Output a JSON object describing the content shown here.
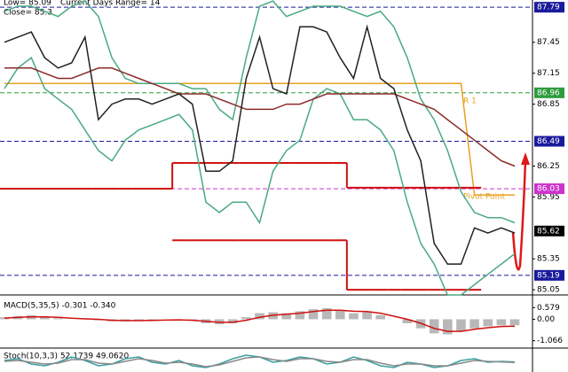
{
  "chart_data": [
    {
      "type": "line",
      "info": [
        "Low= 85.09",
        "Current Days Range= 14",
        "Close= 85.3"
      ],
      "ylim": [
        85.0,
        87.86
      ],
      "yticks": [
        87.45,
        87.15,
        86.85,
        86.25,
        85.95,
        85.35,
        85.05
      ],
      "levels": [
        {
          "value": 87.79,
          "color": "#1a1a9c",
          "dash": true
        },
        {
          "value": 86.96,
          "color": "#2e9b3e",
          "label": "R 1",
          "dash": true
        },
        {
          "value": 86.49,
          "color": "#1a1a9c",
          "dash": true
        },
        {
          "value": 86.03,
          "color": "#cc33cc",
          "label": "Pivot Point",
          "dash": true
        },
        {
          "value": 85.62,
          "color": "#000000",
          "line": false
        },
        {
          "value": 85.19,
          "color": "#1a1a9c",
          "dash": true
        }
      ],
      "series": [
        {
          "style": "line",
          "color": "#e8a020",
          "values": [
            87.05,
            87.05,
            87.05,
            87.05,
            87.05,
            87.05,
            87.05,
            87.05,
            87.05,
            87.05,
            87.05,
            87.05,
            87.05,
            87.05,
            87.05,
            87.05,
            87.05,
            87.05,
            87.05,
            87.05,
            87.05,
            87.05,
            87.05,
            87.05,
            87.05,
            87.05,
            87.05,
            87.05,
            87.05,
            87.05,
            87.05,
            87.05,
            87.05,
            87.05,
            87.05,
            85.97,
            85.97,
            85.97,
            85.97
          ]
        },
        {
          "style": "step",
          "color": "#d01010",
          "values": [
            86.03,
            86.03,
            86.03,
            86.03,
            86.03,
            86.03,
            86.03,
            86.03,
            86.03,
            86.03,
            86.03,
            86.03,
            86.03,
            86.28,
            86.28,
            86.28,
            86.28,
            86.28,
            86.28,
            86.28,
            86.28,
            86.28,
            86.28,
            86.28,
            86.28,
            86.28,
            86.04,
            86.04,
            86.04,
            86.04,
            86.04,
            86.04,
            86.04,
            86.04,
            86.04,
            86.04,
            null,
            null,
            null
          ]
        },
        {
          "style": "step",
          "color": "#d01010",
          "values": [
            null,
            null,
            null,
            null,
            null,
            null,
            null,
            null,
            null,
            null,
            null,
            null,
            null,
            85.53,
            85.53,
            85.53,
            85.53,
            85.53,
            85.53,
            85.53,
            85.53,
            85.53,
            85.53,
            85.53,
            85.53,
            85.53,
            85.05,
            85.05,
            85.05,
            85.05,
            85.05,
            85.05,
            85.05,
            85.05,
            85.05,
            85.05,
            null,
            null,
            null
          ]
        },
        {
          "style": "line",
          "color": "#4aaa80",
          "values": [
            87.75,
            87.8,
            87.8,
            87.75,
            87.7,
            87.8,
            87.85,
            87.7,
            87.3,
            87.1,
            87.05,
            87.05,
            87.05,
            87.05,
            87.0,
            87.0,
            86.8,
            86.7,
            87.3,
            87.8,
            87.85,
            87.7,
            87.75,
            87.8,
            87.8,
            87.8,
            87.75,
            87.7,
            87.75,
            87.6,
            87.3,
            86.9,
            86.7,
            86.4,
            86.0,
            85.8,
            85.75,
            85.75,
            85.7
          ]
        },
        {
          "style": "line",
          "color": "#4aaa80",
          "values": [
            87.0,
            87.2,
            87.3,
            87.0,
            86.9,
            86.8,
            86.6,
            86.4,
            86.3,
            86.5,
            86.6,
            86.65,
            86.7,
            86.75,
            86.6,
            85.9,
            85.8,
            85.9,
            85.9,
            85.7,
            86.2,
            86.4,
            86.5,
            86.9,
            87.0,
            86.95,
            86.7,
            86.7,
            86.6,
            86.4,
            85.9,
            85.5,
            85.3,
            85.0,
            85.0,
            85.1,
            85.2,
            85.3,
            85.4
          ]
        },
        {
          "style": "line",
          "color": "#8b2a2a",
          "values": [
            87.2,
            87.2,
            87.2,
            87.15,
            87.1,
            87.1,
            87.15,
            87.2,
            87.2,
            87.15,
            87.1,
            87.05,
            87.0,
            86.95,
            86.95,
            86.95,
            86.9,
            86.85,
            86.8,
            86.8,
            86.8,
            86.85,
            86.85,
            86.9,
            86.95,
            86.95,
            86.95,
            86.95,
            86.95,
            86.95,
            86.9,
            86.85,
            86.8,
            86.7,
            86.6,
            86.5,
            86.4,
            86.3,
            86.25
          ]
        },
        {
          "style": "line",
          "color": "#222222",
          "values": [
            87.45,
            87.5,
            87.55,
            87.3,
            87.2,
            87.25,
            87.5,
            86.7,
            86.85,
            86.9,
            86.9,
            86.85,
            86.9,
            86.95,
            86.85,
            86.2,
            86.2,
            86.3,
            87.1,
            87.5,
            87.0,
            86.95,
            87.6,
            87.6,
            87.55,
            87.3,
            87.1,
            87.6,
            87.1,
            87.0,
            86.6,
            86.3,
            85.5,
            85.3,
            85.3,
            85.65,
            85.6,
            85.65,
            85.6
          ]
        }
      ]
    },
    {
      "type": "line",
      "title": "MACD(5,35,5) -0.301 -0.340",
      "ylim": [
        -1.3,
        0.9
      ],
      "yticks": [
        0.579,
        {
          "value": 0,
          "label": "0.00"
        },
        -1.066
      ],
      "series": [
        {
          "style": "bar",
          "color": "#b8b8b8",
          "values": [
            0.1,
            0.15,
            0.2,
            0.15,
            0.05,
            0.0,
            0.05,
            -0.05,
            -0.1,
            -0.1,
            -0.05,
            -0.05,
            0.0,
            0.0,
            -0.05,
            -0.2,
            -0.25,
            -0.2,
            0.1,
            0.3,
            0.35,
            0.3,
            0.4,
            0.5,
            0.55,
            0.45,
            0.3,
            0.35,
            0.2,
            0.0,
            -0.2,
            -0.45,
            -0.7,
            -0.75,
            -0.6,
            -0.45,
            -0.35,
            -0.3,
            -0.3
          ]
        },
        {
          "style": "line",
          "color": "#d01010",
          "values": [
            0.05,
            0.1,
            0.12,
            0.12,
            0.1,
            0.05,
            0.02,
            0.0,
            -0.05,
            -0.07,
            -0.07,
            -0.06,
            -0.04,
            -0.03,
            -0.05,
            -0.1,
            -0.15,
            -0.15,
            -0.05,
            0.1,
            0.2,
            0.25,
            0.3,
            0.38,
            0.45,
            0.45,
            0.4,
            0.38,
            0.3,
            0.15,
            0.0,
            -0.2,
            -0.45,
            -0.6,
            -0.6,
            -0.5,
            -0.42,
            -0.36,
            -0.34
          ]
        }
      ]
    },
    {
      "type": "line",
      "title": "Stoch(10,3,3) 52.1739 49.0620",
      "ylim": [
        0,
        100
      ],
      "series": [
        {
          "style": "line",
          "color": "#3aa0a0",
          "values": [
            60,
            70,
            40,
            30,
            50,
            80,
            60,
            30,
            40,
            70,
            80,
            50,
            40,
            60,
            30,
            20,
            40,
            70,
            90,
            80,
            50,
            60,
            80,
            70,
            40,
            50,
            80,
            60,
            30,
            20,
            50,
            40,
            20,
            30,
            60,
            70,
            50,
            55,
            52
          ]
        },
        {
          "style": "line",
          "color": "#888888",
          "values": [
            55,
            60,
            50,
            40,
            45,
            65,
            65,
            45,
            40,
            55,
            70,
            60,
            45,
            50,
            40,
            25,
            35,
            55,
            75,
            80,
            65,
            55,
            70,
            70,
            55,
            50,
            65,
            65,
            45,
            30,
            40,
            40,
            30,
            30,
            45,
            60,
            55,
            52,
            49
          ]
        }
      ]
    }
  ]
}
